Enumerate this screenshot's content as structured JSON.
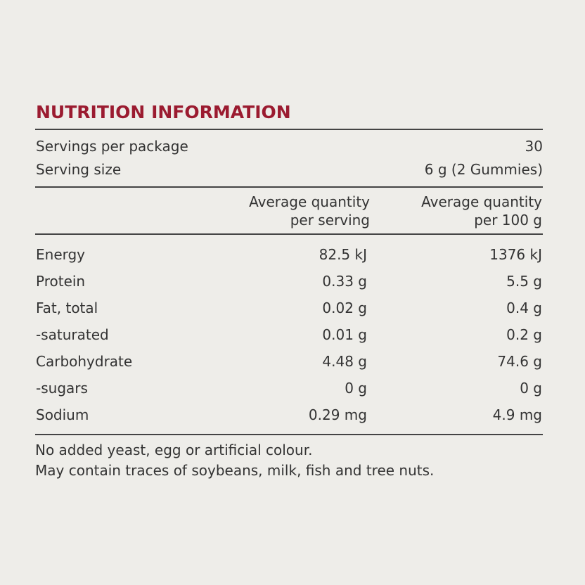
{
  "title": "NUTRITION INFORMATION",
  "servings": [
    {
      "label": "Servings per package",
      "value": "30"
    },
    {
      "label": "Serving size",
      "value": "6 g (2 Gummies)"
    }
  ],
  "columns": [
    [
      "Average quantity",
      "per serving"
    ],
    [
      "Average quantity",
      "per 100 g"
    ]
  ],
  "rows": [
    [
      "Energy",
      "82.5 kJ",
      "1376 kJ"
    ],
    [
      "Protein",
      "0.33 g",
      "5.5 g"
    ],
    [
      "Fat, total",
      "0.02 g",
      "0.4 g"
    ],
    [
      "-saturated",
      "0.01 g",
      "0.2 g"
    ],
    [
      "Carbohydrate",
      "4.48 g",
      "74.6 g"
    ],
    [
      "-sugars",
      "0 g",
      "0 g"
    ],
    [
      "Sodium",
      "0.29 mg",
      "4.9 mg"
    ]
  ],
  "notes": [
    "No added yeast, egg or artificial colour.",
    "May contain traces of soybeans, milk, fish and tree nuts."
  ]
}
